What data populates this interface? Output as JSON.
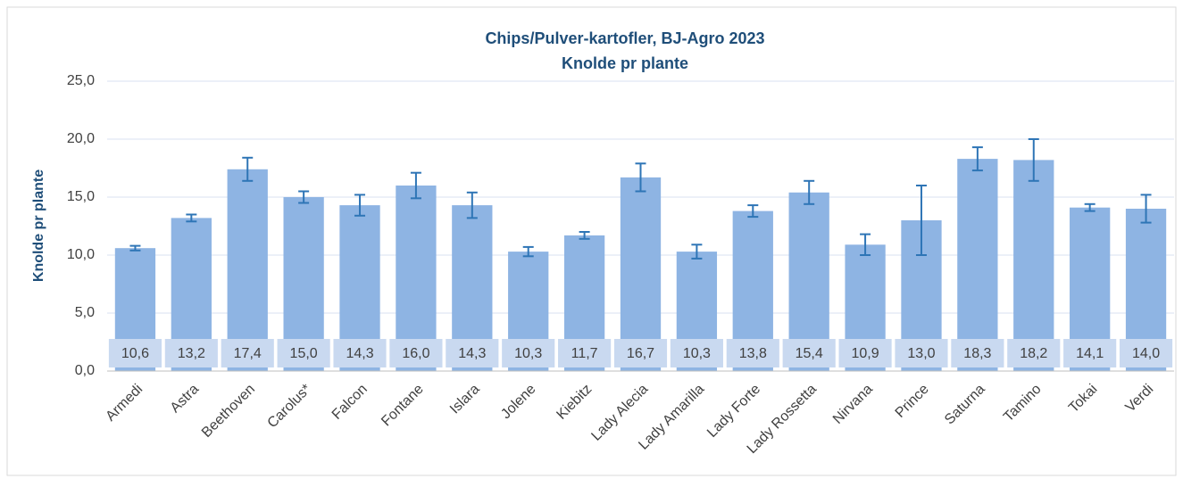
{
  "chart_data": {
    "type": "bar",
    "title": "Chips/Pulver-kartofler, BJ-Agro 2023",
    "subtitle": "Knolde pr plante",
    "y_label": "Knolde pr plante",
    "categories": [
      "Armedi",
      "Astra",
      "Beethoven",
      "Carolus*",
      "Falcon",
      "Fontane",
      "Islara",
      "Jolene",
      "Kiebitz",
      "Lady Alecia",
      "Lady Amarilla",
      "Lady Forte",
      "Lady Rossetta",
      "Nirvana",
      "Prince",
      "Saturna",
      "Tamino",
      "Tokai",
      "Verdi"
    ],
    "values": [
      10.6,
      13.2,
      17.4,
      15.0,
      14.3,
      16.0,
      14.3,
      10.3,
      11.7,
      16.7,
      10.3,
      13.8,
      15.4,
      10.9,
      13.0,
      18.3,
      18.2,
      14.1,
      14.0
    ],
    "value_labels": [
      "10,6",
      "13,2",
      "17,4",
      "15,0",
      "14,3",
      "16,0",
      "14,3",
      "10,3",
      "11,7",
      "16,7",
      "10,3",
      "13,8",
      "15,4",
      "10,9",
      "13,0",
      "18,3",
      "18,2",
      "14,1",
      "14,0"
    ],
    "errors": [
      0.2,
      0.3,
      1.0,
      0.5,
      0.9,
      1.1,
      1.1,
      0.4,
      0.3,
      1.2,
      0.6,
      0.5,
      1.0,
      0.9,
      3.0,
      1.0,
      1.8,
      0.3,
      1.2
    ],
    "color": "#8eb4e3",
    "error_color": "#2e75b6",
    "ylim": [
      0,
      25
    ],
    "yticks": [
      {
        "value": 0,
        "label": "0,0"
      },
      {
        "value": 5,
        "label": "5,0"
      },
      {
        "value": 10,
        "label": "10,0"
      },
      {
        "value": 15,
        "label": "15,0"
      },
      {
        "value": 20,
        "label": "20,0"
      },
      {
        "value": 25,
        "label": "25,0"
      }
    ],
    "grid": true
  }
}
